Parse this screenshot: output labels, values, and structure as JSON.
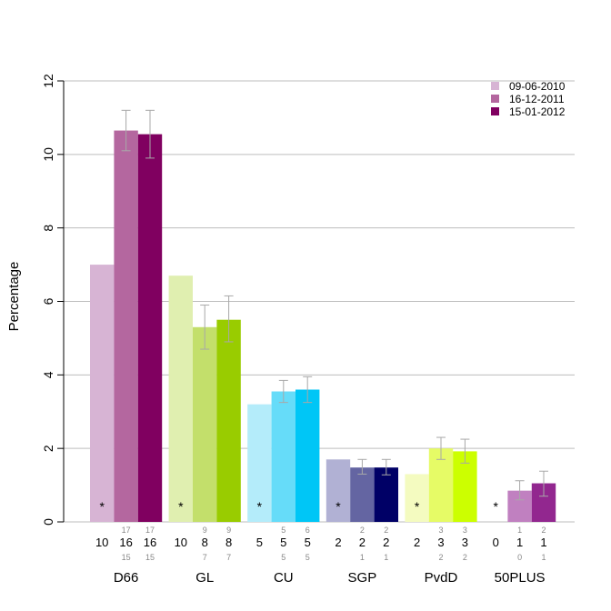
{
  "chart_data": {
    "type": "bar",
    "ylabel": "Percentage",
    "ylim": [
      0,
      12
    ],
    "yticks": [
      "0",
      "2",
      "4",
      "6",
      "8",
      "10",
      "12"
    ],
    "grid": true,
    "legend_position": "top-right",
    "series": [
      {
        "name": "09-06-2010",
        "values": [
          7.0,
          6.7,
          3.2,
          1.7,
          1.3,
          0
        ]
      },
      {
        "name": "16-12-2011",
        "values": [
          10.65,
          5.3,
          3.55,
          1.48,
          2.0,
          0.85
        ]
      },
      {
        "name": "15-01-2012",
        "values": [
          10.55,
          5.5,
          3.6,
          1.48,
          1.92,
          1.05
        ]
      }
    ],
    "groups": [
      {
        "party": "D66",
        "colors": [
          "#d7b4d4",
          "#b4679f",
          "#800060"
        ],
        "star": "*",
        "errors": [
          null,
          [
            10.1,
            11.2
          ],
          [
            9.9,
            11.2
          ]
        ],
        "seats": [
          {
            "main": "10"
          },
          {
            "top": "17",
            "main": "16",
            "bottom": "15"
          },
          {
            "top": "17",
            "main": "16",
            "bottom": "15"
          }
        ]
      },
      {
        "party": "GL",
        "colors": [
          "#e0efb0",
          "#c3df6b",
          "#99cc00"
        ],
        "star": "*",
        "errors": [
          null,
          [
            4.7,
            5.9
          ],
          [
            4.9,
            6.15
          ]
        ],
        "seats": [
          {
            "main": "10"
          },
          {
            "top": "9",
            "main": "8",
            "bottom": "7"
          },
          {
            "top": "9",
            "main": "8",
            "bottom": "7"
          }
        ]
      },
      {
        "party": "CU",
        "colors": [
          "#b4ecfa",
          "#66dcf9",
          "#00c6f6"
        ],
        "star": "*",
        "errors": [
          null,
          [
            3.25,
            3.85
          ],
          [
            3.25,
            3.95
          ]
        ],
        "seats": [
          {
            "main": "5"
          },
          {
            "top": "5",
            "main": "5",
            "bottom": "5"
          },
          {
            "top": "6",
            "main": "5",
            "bottom": "5"
          }
        ]
      },
      {
        "party": "SGP",
        "colors": [
          "#b1b1d4",
          "#6465a2",
          "#000066"
        ],
        "star": "*",
        "errors": [
          null,
          [
            1.3,
            1.7
          ],
          [
            1.28,
            1.7
          ]
        ],
        "seats": [
          {
            "main": "2"
          },
          {
            "top": "2",
            "main": "2",
            "bottom": "1"
          },
          {
            "top": "2",
            "main": "2",
            "bottom": "1"
          }
        ]
      },
      {
        "party": "PvdD",
        "colors": [
          "#f4fbc0",
          "#e6fb66",
          "#ccff00"
        ],
        "star": "*",
        "errors": [
          null,
          [
            1.7,
            2.3
          ],
          [
            1.6,
            2.25
          ]
        ],
        "seats": [
          {
            "main": "2"
          },
          {
            "top": "3",
            "main": "3",
            "bottom": "2"
          },
          {
            "top": "3",
            "main": "3",
            "bottom": "2"
          }
        ]
      },
      {
        "party": "50PLUS",
        "colors": [
          "#f0d8f0",
          "#c080c0",
          "#92278f"
        ],
        "star": "*",
        "errors": [
          null,
          [
            0.6,
            1.12
          ],
          [
            0.7,
            1.38
          ]
        ],
        "seats": [
          {
            "main": "0"
          },
          {
            "top": "1",
            "main": "1",
            "bottom": "0"
          },
          {
            "top": "2",
            "main": "1",
            "bottom": "1"
          }
        ]
      }
    ]
  }
}
